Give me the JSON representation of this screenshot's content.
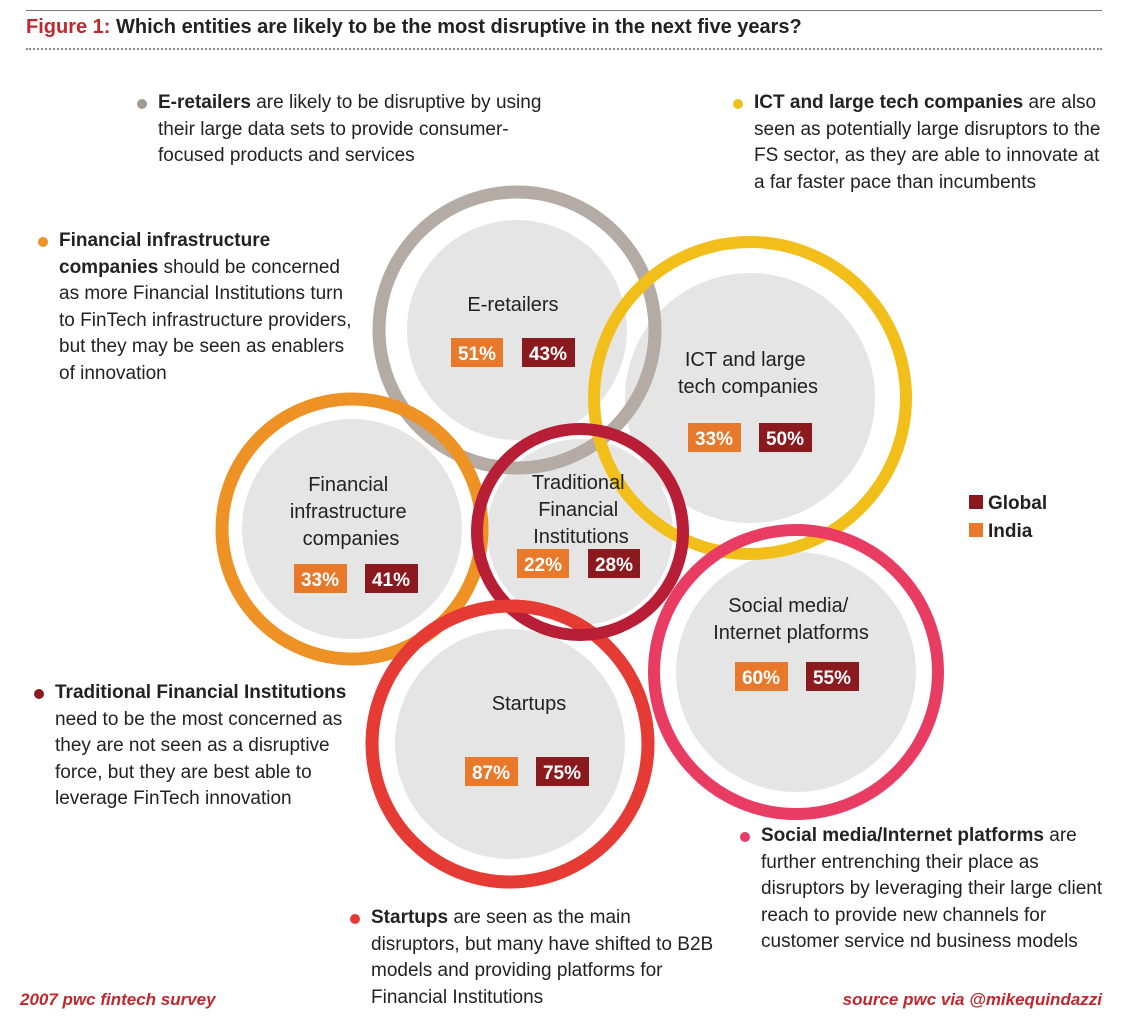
{
  "header": {
    "figure_label": "Figure 1:",
    "title": "Which entities are likely to be the most disruptive in the next five years?"
  },
  "legend": {
    "items": [
      {
        "label": "Global",
        "color": "#8b1a1f"
      },
      {
        "label": "India",
        "color": "#e8782a"
      }
    ]
  },
  "colors": {
    "global_box": "#8b1a1f",
    "india_box": "#e8782a",
    "inner_disc": "#e6e5e6"
  },
  "entities": [
    {
      "id": "e-retailers",
      "label_lines": [
        "E-retailers"
      ],
      "india": "51%",
      "global": "43%",
      "ring_color": "#b3aba4"
    },
    {
      "id": "ict",
      "label_lines": [
        "ICT and large",
        "tech companies"
      ],
      "india": "33%",
      "global": "50%",
      "ring_color": "#f2be1a"
    },
    {
      "id": "fin-infra",
      "label_lines": [
        "Financial",
        "infrastructure",
        "companies"
      ],
      "india": "33%",
      "global": "41%",
      "ring_color": "#ee9226"
    },
    {
      "id": "traditional",
      "label_lines": [
        "Traditional",
        "Financial",
        "Institutions"
      ],
      "india": "22%",
      "global": "28%",
      "ring_color": "#b81f37"
    },
    {
      "id": "social",
      "label_lines": [
        "Social media/",
        "Internet platforms"
      ],
      "india": "60%",
      "global": "55%",
      "ring_color": "#e83c63"
    },
    {
      "id": "startups",
      "label_lines": [
        "Startups"
      ],
      "india": "87%",
      "global": "75%",
      "ring_color": "#e53b34"
    }
  ],
  "notes": {
    "e_retailers": {
      "bold": "E-retailers",
      "text": " are likely to be disruptive by using their large data sets to provide consumer-focused products and services",
      "color": "#a39a92"
    },
    "ict": {
      "bold": "ICT and large tech companies",
      "text": " are also seen as potentially large disruptors to the FS sector, as they are able to innovate at a far faster pace than incumbents",
      "color": "#f2be1a"
    },
    "fin_infra": {
      "bold": "Financial infrastructure companies",
      "text": " should be concerned as more Financial Institutions turn to FinTech infrastructure providers, but they may be seen as enablers of innovation",
      "color": "#ee9226"
    },
    "traditional": {
      "bold": "Traditional Financial Institutions",
      "text": " need to be the most concerned as they are not seen as a disruptive force, but they are best able to leverage FinTech innovation",
      "color": "#8b1a1f"
    },
    "social": {
      "bold": "Social media/Internet platforms",
      "text": " are further entrenching their place as disruptors by leveraging their large client reach to provide new channels for customer service nd business models",
      "color": "#e83c63"
    },
    "startups": {
      "bold": "Startups",
      "text": " are seen as the main disruptors, but many have shifted to B2B models and providing platforms for Financial Institutions",
      "color": "#e53b34"
    }
  },
  "footer": {
    "left": "2007 pwc fintech survey",
    "right": "source pwc via @mikequindazzi"
  }
}
